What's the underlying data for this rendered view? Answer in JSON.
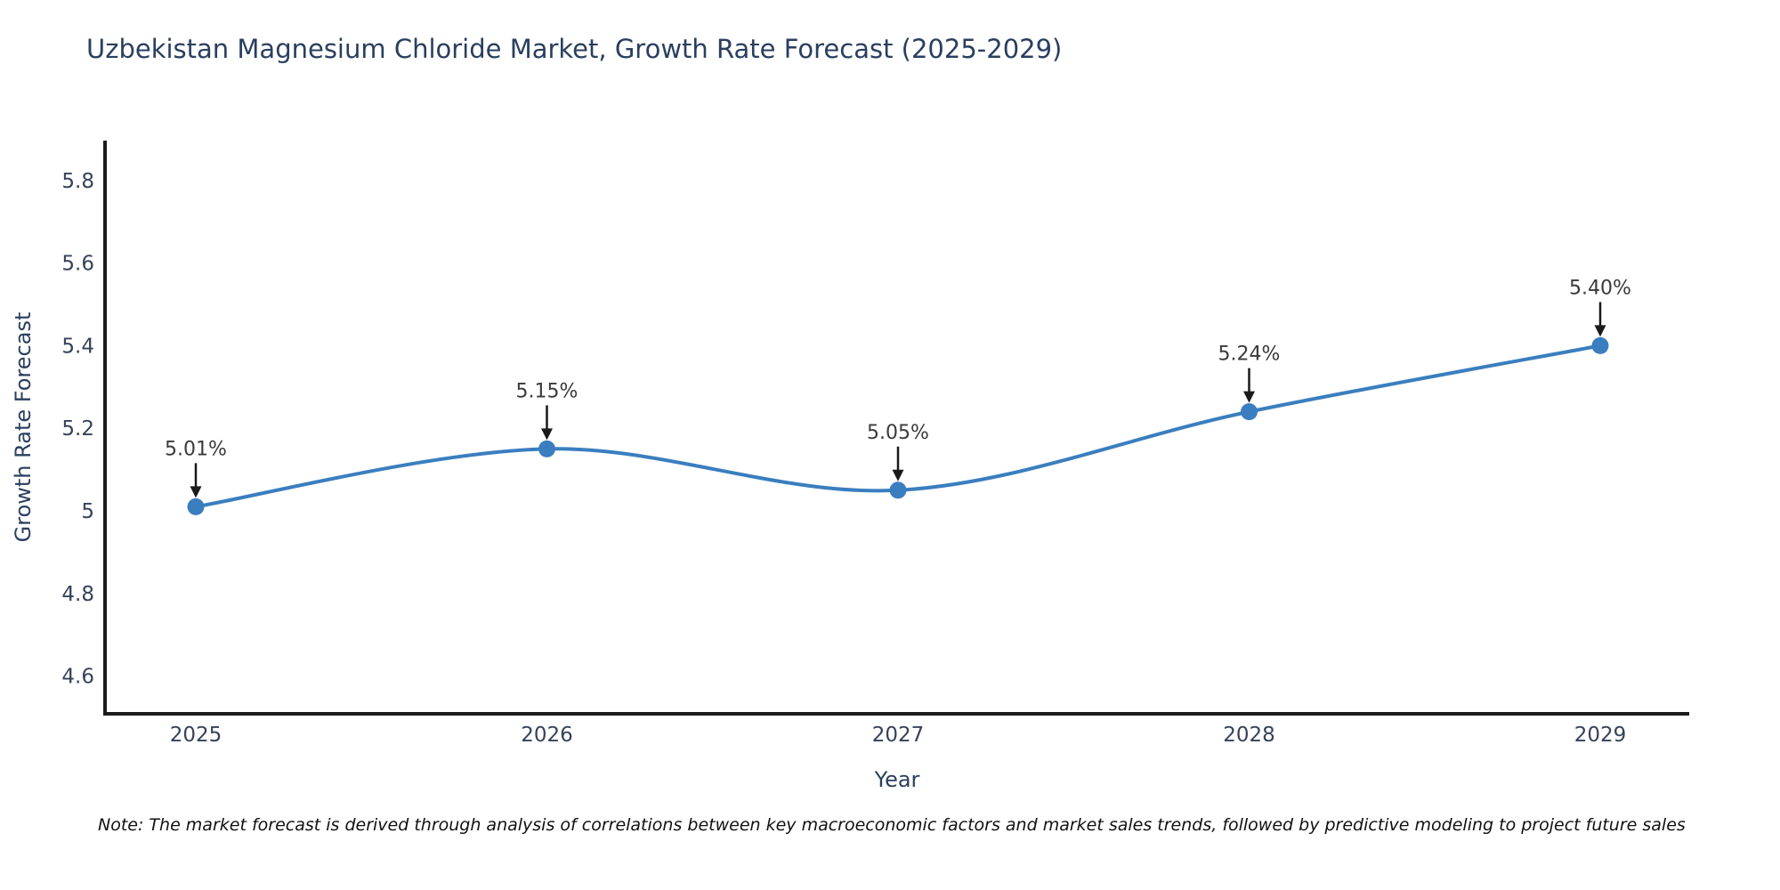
{
  "chart_data": {
    "type": "line",
    "title": "Uzbekistan Magnesium Chloride Market, Growth Rate Forecast (2025-2029)",
    "xlabel": "Year",
    "ylabel": "Growth Rate Forecast",
    "categories": [
      2025,
      2026,
      2027,
      2028,
      2029
    ],
    "values": [
      5.01,
      5.15,
      5.05,
      5.24,
      5.4
    ],
    "point_labels": [
      "5.01%",
      "5.15%",
      "5.05%",
      "5.24%",
      "5.40%"
    ],
    "y_ticks": [
      5.8,
      5.6,
      5.4,
      5.2,
      5,
      4.8,
      4.6
    ],
    "ylim": [
      4.51,
      5.9
    ],
    "curve": "spline",
    "grid": false,
    "legend": false,
    "line_color": "#3a7ebf",
    "marker_color": "#3a7ebf",
    "axis_color": "#1c1c1c",
    "arrow_color": "#1a1a1a",
    "note": "Note: The market forecast is derived through analysis of correlations between key macroeconomic factors and market sales trends, followed by predictive modeling to project future sales"
  }
}
